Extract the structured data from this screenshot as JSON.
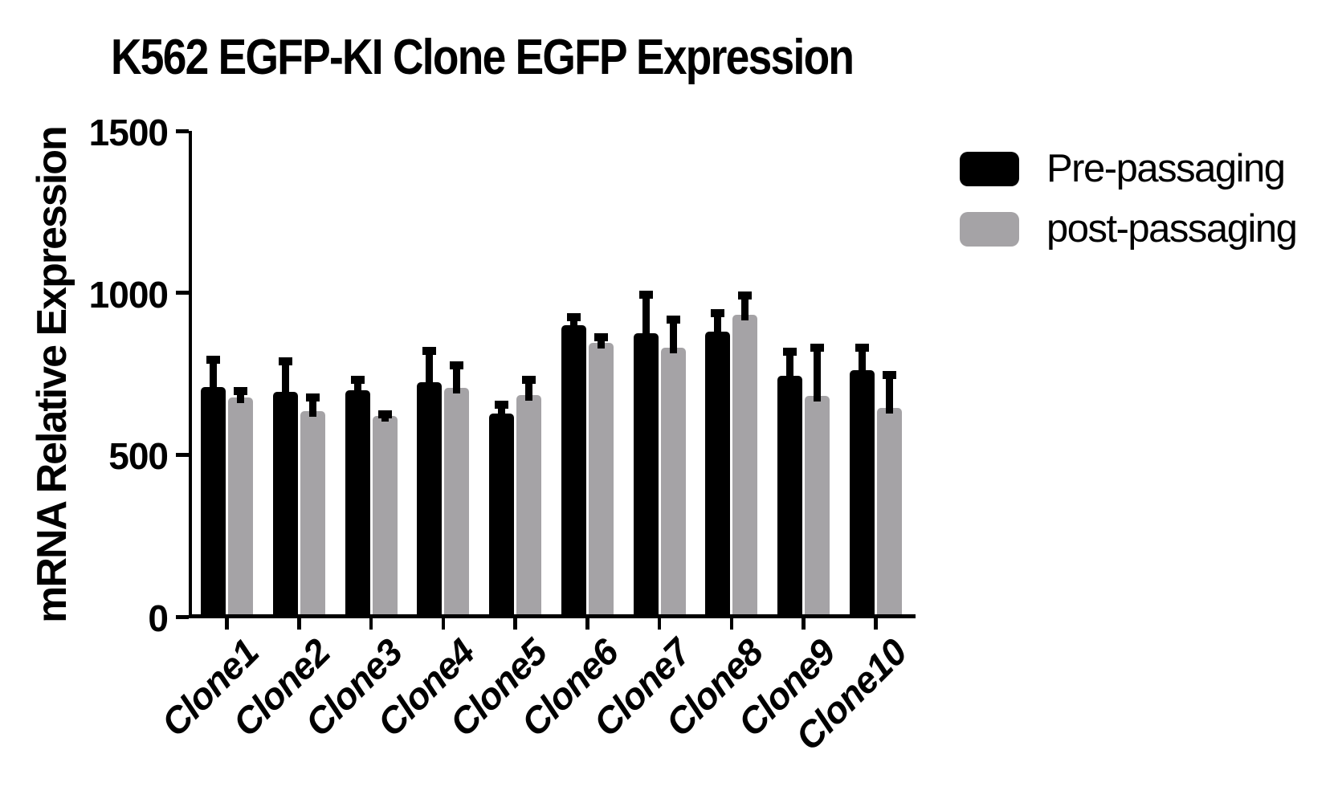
{
  "figure": {
    "title": "K562 EGFP-KI Clone EGFP Expression",
    "ylabel": "mRNA Relative Expression"
  },
  "chart_data": {
    "type": "bar",
    "title": "K562 EGFP-KI Clone EGFP Expression",
    "xlabel": "",
    "ylabel": "mRNA Relative Expression",
    "categories": [
      "Clone1",
      "Clone2",
      "Clone3",
      "Clone4",
      "Clone5",
      "Clone6",
      "Clone7",
      "Clone8",
      "Clone9",
      "Clone10"
    ],
    "series": [
      {
        "name": "Pre-passaging",
        "color": "#000000",
        "values": [
          710,
          695,
          700,
          725,
          628,
          900,
          875,
          880,
          745,
          760
        ],
        "errors": [
          95,
          105,
          45,
          108,
          38,
          38,
          132,
          70,
          85,
          84
        ]
      },
      {
        "name": "post-passaging",
        "color": "#a5a3a6",
        "values": [
          678,
          635,
          620,
          707,
          684,
          846,
          831,
          932,
          682,
          645
        ],
        "errors": [
          31,
          54,
          18,
          82,
          60,
          29,
          99,
          72,
          160,
          114
        ]
      }
    ],
    "ylim": [
      0,
      1500
    ],
    "yticks": [
      0,
      500,
      1000,
      1500
    ],
    "grid": false,
    "error_bars": true,
    "legend_position": "upper-right",
    "axis_color": "#000000"
  }
}
